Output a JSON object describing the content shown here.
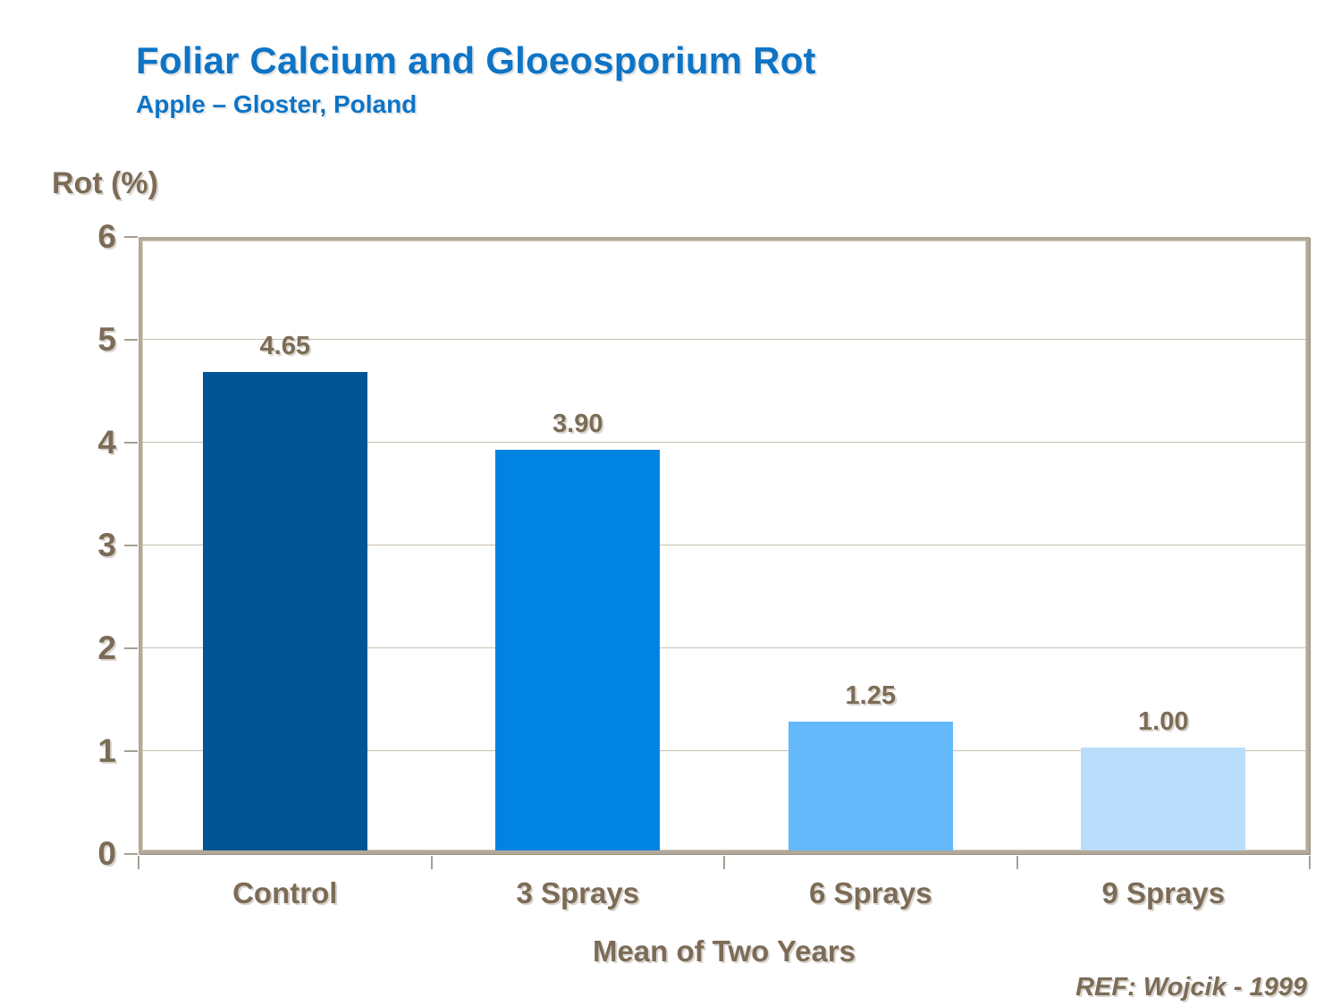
{
  "slide": {
    "title": "Foliar Calcium and Gloeosporium Rot",
    "subtitle": "Apple – Gloster, Poland",
    "reference": "REF: Wojcik - 1999"
  },
  "chart_data": {
    "type": "bar",
    "title": "Foliar Calcium and Gloeosporium Rot",
    "subtitle": "Apple – Gloster, Poland",
    "categories": [
      "Control",
      "3 Sprays",
      "6 Sprays",
      "9 Sprays"
    ],
    "values": [
      4.65,
      3.9,
      1.25,
      1.0
    ],
    "value_labels": [
      "4.65",
      "3.90",
      "1.25",
      "1.00"
    ],
    "ylabel": "Rot (%)",
    "xlabel": "Mean of Two Years",
    "ylim": [
      0,
      6
    ],
    "yticks": [
      0,
      1,
      2,
      3,
      4,
      5,
      6
    ],
    "grid": "horizontal",
    "legend": "none",
    "bar_colors": [
      "#005694",
      "#0183E2",
      "#63B9F9",
      "#B9DDFA"
    ],
    "reference": "REF: Wojcik - 1999"
  },
  "colors": {
    "title_blue": "#0D74C6",
    "text_brown": "#7C6C57",
    "frame": "#B2A99B",
    "gridline": "#C8BEB0",
    "background": "#FFFFFF"
  }
}
